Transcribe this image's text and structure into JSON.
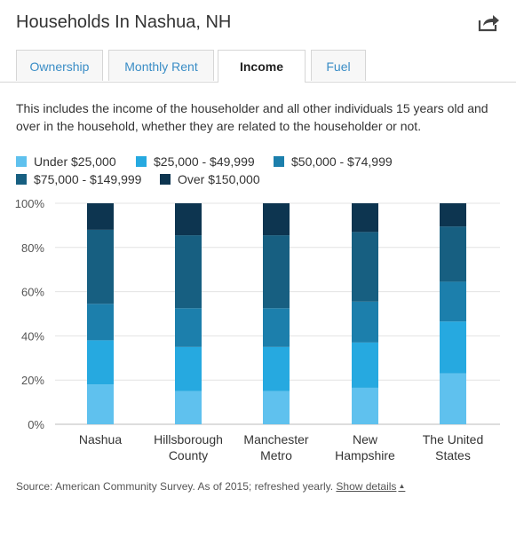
{
  "header": {
    "title": "Households In Nashua, NH",
    "share_icon": "share-icon"
  },
  "tabs": [
    {
      "label": "Ownership",
      "active": false
    },
    {
      "label": "Monthly Rent",
      "active": false
    },
    {
      "label": "Income",
      "active": true
    },
    {
      "label": "Fuel",
      "active": false
    }
  ],
  "description": "This includes the income of the householder and all other individuals 15 years old and over in the household, whether they are related to the householder or not.",
  "footer": {
    "source": "Source: American Community Survey. As of 2015; refreshed yearly.",
    "link": "Show details"
  },
  "chart_data": {
    "type": "bar",
    "stacked": true,
    "percent": true,
    "categories": [
      [
        "Nashua"
      ],
      [
        "Hillsborough",
        "County"
      ],
      [
        "Manchester",
        "Metro"
      ],
      [
        "New",
        "Hampshire"
      ],
      [
        "The United",
        "States"
      ]
    ],
    "ylim": [
      0,
      100
    ],
    "yticks": [
      0,
      20,
      40,
      60,
      80,
      100
    ],
    "ytick_labels": [
      "0%",
      "20%",
      "40%",
      "60%",
      "80%",
      "100%"
    ],
    "grid": true,
    "legend": "top",
    "series": [
      {
        "name": "Under $25,000",
        "color": "#5fc1ee",
        "values": [
          18,
          15,
          15,
          16.5,
          23
        ]
      },
      {
        "name": "$25,000 - $49,999",
        "color": "#26a9e0",
        "values": [
          20,
          20,
          20,
          20.5,
          23.5
        ]
      },
      {
        "name": "$50,000 - $74,999",
        "color": "#1c7fac",
        "values": [
          16.5,
          17.5,
          17.5,
          18.5,
          18
        ]
      },
      {
        "name": "$75,000 - $149,999",
        "color": "#175f81",
        "values": [
          33.5,
          33,
          33,
          31.5,
          25
        ]
      },
      {
        "name": "Over $150,000",
        "color": "#0d3550",
        "values": [
          12,
          14.5,
          14.5,
          13,
          10.5
        ]
      }
    ]
  }
}
